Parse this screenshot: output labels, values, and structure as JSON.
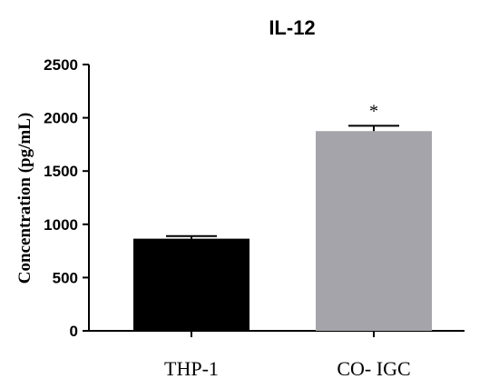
{
  "chart_data": {
    "type": "bar",
    "title": "IL-12",
    "xlabel": "",
    "ylabel": "Concentration (pg/mL)",
    "categories": [
      "THP-1",
      "CO- IGC"
    ],
    "values": [
      865,
      1875
    ],
    "errors": [
      25,
      50
    ],
    "bar_colors": [
      "#000000",
      "#a5a4aa"
    ],
    "annotations": [
      "",
      "*"
    ],
    "ylim": [
      0,
      2500
    ],
    "yticks": [
      0,
      500,
      1000,
      1500,
      2000,
      2500
    ],
    "grid": false,
    "legend": "none"
  }
}
